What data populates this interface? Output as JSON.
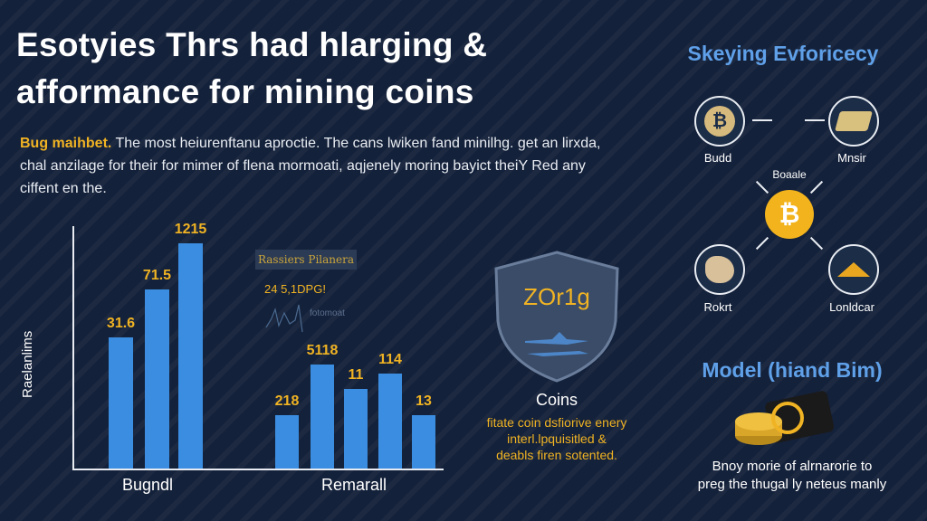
{
  "title": {
    "line1": "Esotyies Thrs had hlarging &",
    "line2": "afformance for mining coins"
  },
  "intro": {
    "highlight": "Bug maihbet.",
    "text": " The most heiurenftanu aproctie. The cans lwiken fand minilhg. get an lirxda, chal anzilage for their  for mimer of flena mormoati, aqjenely moring bayict theiY Red any ciffent en the."
  },
  "chart_data": [
    {
      "type": "bar",
      "ylabel": "Raelanlims",
      "categories": [
        "Bugndl"
      ],
      "value_labels": [
        "31.6",
        "71.5",
        "1215"
      ],
      "relative_heights": [
        0.54,
        0.74,
        0.93
      ],
      "color": "#3a8de0",
      "label_color": "#f0b323"
    },
    {
      "type": "bar",
      "categories": [
        "Remarall"
      ],
      "value_labels": [
        "218",
        "5118",
        "11",
        "114",
        "13"
      ],
      "relative_heights": [
        0.22,
        0.43,
        0.33,
        0.39,
        0.22
      ],
      "color": "#3a8de0",
      "label_color": "#f0b323",
      "legend": "Rassiers Pilanera",
      "mini_value": "24 5,1DPG!",
      "mini_note": "fotomoat"
    }
  ],
  "shield": {
    "text": "ZOr1g",
    "title": "Coins",
    "desc": [
      "fitate coin dsfiorive enery",
      "interl.lpquisitled &",
      "deabls firen sotented."
    ]
  },
  "right": {
    "title": "Skeying Evforicecy",
    "center_label": "Boaale",
    "center_icon": "bitcoin-icon",
    "nodes": [
      {
        "label": "Budd",
        "icon": "bitcoin-coin-icon"
      },
      {
        "label": "Mnsir",
        "icon": "gold-bar-icon"
      },
      {
        "label": "Rokrt",
        "icon": "ore-icon"
      },
      {
        "label": "Lonldcar",
        "icon": "mountain-icon"
      }
    ],
    "model_title": "Model (hiand Bim)",
    "model_icon": "coins-wallet-icon",
    "model_desc": [
      "Bnoy morie of alrnarorie to",
      "preg the thugal ly neteus manly"
    ]
  },
  "colors": {
    "background": "#14213a",
    "accent": "#f0b323",
    "bar": "#3a8de0",
    "heading_blue": "#5fa0e8"
  }
}
